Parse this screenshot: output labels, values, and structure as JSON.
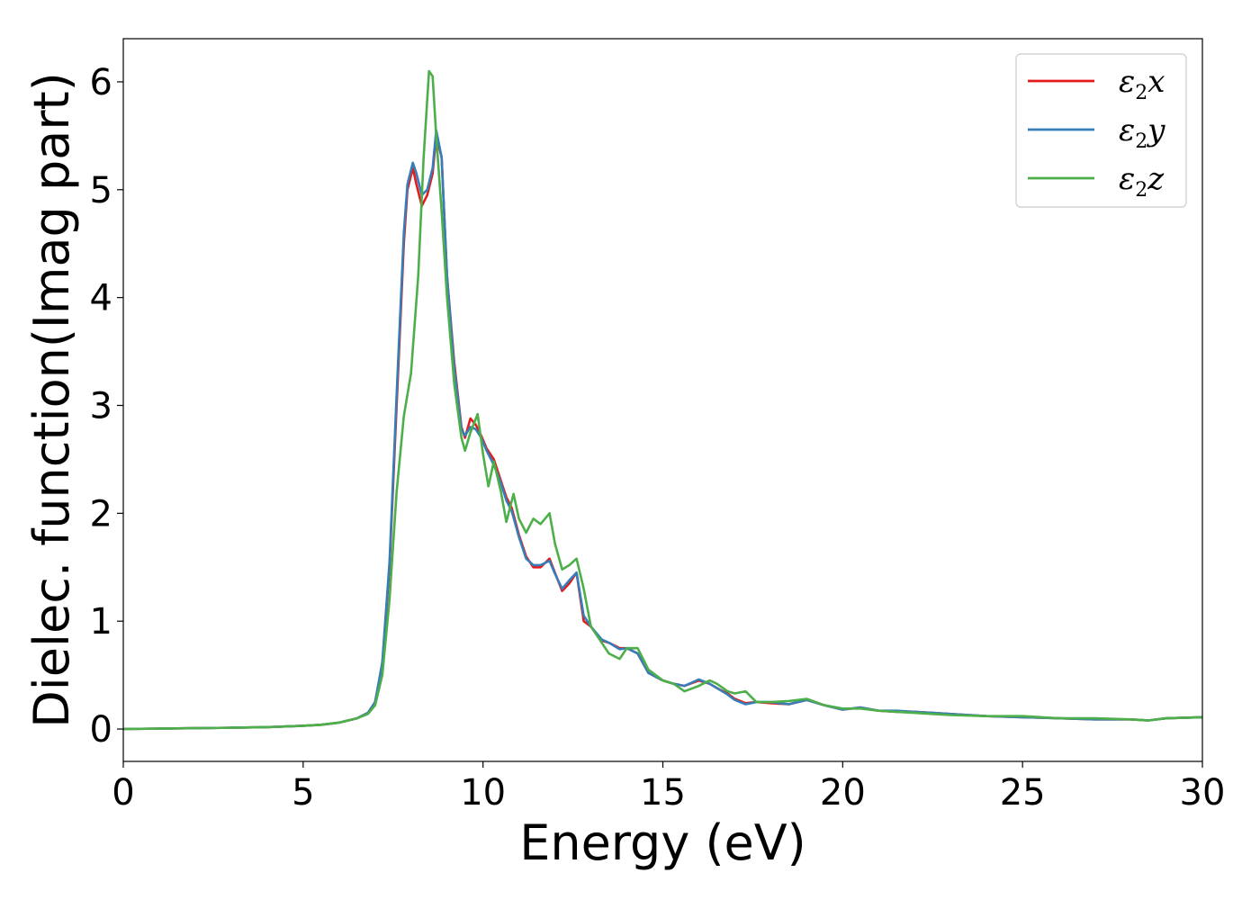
{
  "chart_data": {
    "type": "line",
    "title": "",
    "xlabel": "Energy (eV)",
    "ylabel": "Dielec. function(Imag part)",
    "xlim": [
      0,
      30
    ],
    "ylim": [
      -0.3,
      6.4
    ],
    "xticks": [
      0,
      5,
      10,
      15,
      20,
      25,
      30
    ],
    "yticks": [
      0,
      1,
      2,
      3,
      4,
      5,
      6
    ],
    "grid": false,
    "legend_position": "top-right",
    "series": [
      {
        "name": "ε2x",
        "legend_base": "ε",
        "legend_sub": "2",
        "legend_axis": "x",
        "color": "#e41a1c",
        "x": [
          0,
          1,
          2,
          3,
          4,
          5,
          5.5,
          6,
          6.5,
          6.8,
          7.0,
          7.2,
          7.4,
          7.6,
          7.8,
          7.9,
          8.05,
          8.15,
          8.3,
          8.45,
          8.6,
          8.7,
          8.85,
          9.0,
          9.2,
          9.4,
          9.5,
          9.65,
          9.8,
          9.95,
          10.1,
          10.3,
          10.5,
          10.65,
          10.8,
          11.0,
          11.2,
          11.4,
          11.6,
          11.85,
          12.0,
          12.2,
          12.4,
          12.6,
          12.8,
          13.0,
          13.3,
          13.5,
          13.8,
          14.0,
          14.3,
          14.6,
          15.0,
          15.3,
          15.6,
          16.0,
          16.3,
          16.5,
          16.8,
          17.0,
          17.3,
          17.6,
          18.0,
          18.5,
          19.0,
          19.5,
          20.0,
          20.5,
          21.0,
          21.5,
          22.0,
          22.5,
          23,
          24,
          25,
          26,
          27,
          28,
          28.5,
          29,
          30
        ],
        "y": [
          0.0,
          0.004,
          0.008,
          0.012,
          0.018,
          0.03,
          0.04,
          0.06,
          0.1,
          0.15,
          0.25,
          0.6,
          1.5,
          3.0,
          4.5,
          5.0,
          5.2,
          5.05,
          4.85,
          4.95,
          5.15,
          5.5,
          5.3,
          4.2,
          3.4,
          2.8,
          2.7,
          2.88,
          2.82,
          2.72,
          2.6,
          2.5,
          2.3,
          2.15,
          2.05,
          1.8,
          1.6,
          1.5,
          1.5,
          1.58,
          1.45,
          1.28,
          1.35,
          1.45,
          1.0,
          0.95,
          0.82,
          0.8,
          0.75,
          0.75,
          0.7,
          0.52,
          0.45,
          0.42,
          0.4,
          0.45,
          0.42,
          0.38,
          0.33,
          0.28,
          0.24,
          0.25,
          0.24,
          0.23,
          0.27,
          0.22,
          0.18,
          0.2,
          0.17,
          0.16,
          0.16,
          0.15,
          0.14,
          0.12,
          0.11,
          0.1,
          0.09,
          0.09,
          0.08,
          0.1,
          0.11
        ]
      },
      {
        "name": "ε2y",
        "legend_base": "ε",
        "legend_sub": "2",
        "legend_axis": "y",
        "color": "#377eb8",
        "x": [
          0,
          1,
          2,
          3,
          4,
          5,
          5.5,
          6,
          6.5,
          6.8,
          7.0,
          7.2,
          7.4,
          7.6,
          7.8,
          7.9,
          8.05,
          8.15,
          8.3,
          8.45,
          8.6,
          8.7,
          8.85,
          9.0,
          9.2,
          9.4,
          9.5,
          9.65,
          9.8,
          9.95,
          10.1,
          10.3,
          10.5,
          10.65,
          10.8,
          11.0,
          11.2,
          11.4,
          11.6,
          11.85,
          12.0,
          12.2,
          12.4,
          12.6,
          12.8,
          13.0,
          13.3,
          13.5,
          13.8,
          14.0,
          14.3,
          14.6,
          15.0,
          15.3,
          15.6,
          16.0,
          16.3,
          16.5,
          16.8,
          17.0,
          17.3,
          17.6,
          18.0,
          18.5,
          19.0,
          19.5,
          20.0,
          20.5,
          21.0,
          21.5,
          22.0,
          22.5,
          23,
          24,
          25,
          26,
          27,
          28,
          28.5,
          29,
          30
        ],
        "y": [
          0.0,
          0.004,
          0.008,
          0.012,
          0.018,
          0.03,
          0.04,
          0.06,
          0.1,
          0.15,
          0.25,
          0.62,
          1.55,
          3.1,
          4.6,
          5.05,
          5.25,
          5.15,
          4.95,
          5.0,
          5.2,
          5.55,
          5.3,
          4.2,
          3.35,
          2.78,
          2.72,
          2.8,
          2.78,
          2.7,
          2.58,
          2.45,
          2.28,
          2.12,
          2.02,
          1.78,
          1.58,
          1.52,
          1.52,
          1.56,
          1.44,
          1.3,
          1.38,
          1.45,
          1.05,
          0.95,
          0.83,
          0.8,
          0.74,
          0.75,
          0.7,
          0.52,
          0.45,
          0.42,
          0.4,
          0.46,
          0.42,
          0.38,
          0.32,
          0.27,
          0.23,
          0.25,
          0.25,
          0.23,
          0.27,
          0.22,
          0.18,
          0.2,
          0.17,
          0.17,
          0.16,
          0.15,
          0.14,
          0.12,
          0.11,
          0.1,
          0.09,
          0.09,
          0.08,
          0.1,
          0.11
        ]
      },
      {
        "name": "ε2z",
        "legend_base": "ε",
        "legend_sub": "2",
        "legend_axis": "z",
        "color": "#4daf4a",
        "x": [
          0,
          1,
          2,
          3,
          4,
          5,
          5.5,
          6,
          6.5,
          6.8,
          7.0,
          7.2,
          7.4,
          7.6,
          7.8,
          8.0,
          8.2,
          8.35,
          8.5,
          8.6,
          8.7,
          8.85,
          9.0,
          9.2,
          9.4,
          9.5,
          9.65,
          9.85,
          10.0,
          10.15,
          10.3,
          10.5,
          10.65,
          10.85,
          11.0,
          11.2,
          11.4,
          11.6,
          11.85,
          12.0,
          12.2,
          12.4,
          12.6,
          12.8,
          13.0,
          13.3,
          13.5,
          13.8,
          14.0,
          14.3,
          14.6,
          15.0,
          15.3,
          15.6,
          16.0,
          16.3,
          16.5,
          16.8,
          17.0,
          17.3,
          17.6,
          18.0,
          18.5,
          19.0,
          19.5,
          20.0,
          20.5,
          21.0,
          21.5,
          22.0,
          22.5,
          23,
          24,
          25,
          26,
          27,
          28,
          28.5,
          29,
          30
        ],
        "y": [
          0.0,
          0.004,
          0.008,
          0.012,
          0.018,
          0.03,
          0.04,
          0.06,
          0.1,
          0.14,
          0.22,
          0.5,
          1.2,
          2.2,
          2.9,
          3.3,
          4.2,
          5.3,
          6.1,
          6.05,
          5.5,
          4.8,
          4.0,
          3.2,
          2.7,
          2.58,
          2.75,
          2.92,
          2.55,
          2.25,
          2.48,
          2.2,
          1.92,
          2.18,
          1.95,
          1.82,
          1.95,
          1.9,
          2.0,
          1.72,
          1.48,
          1.52,
          1.58,
          1.3,
          0.95,
          0.8,
          0.7,
          0.65,
          0.75,
          0.75,
          0.55,
          0.45,
          0.42,
          0.35,
          0.4,
          0.45,
          0.42,
          0.35,
          0.33,
          0.35,
          0.25,
          0.25,
          0.26,
          0.28,
          0.22,
          0.19,
          0.19,
          0.17,
          0.16,
          0.15,
          0.14,
          0.13,
          0.12,
          0.12,
          0.1,
          0.1,
          0.09,
          0.08,
          0.1,
          0.11
        ]
      }
    ]
  }
}
